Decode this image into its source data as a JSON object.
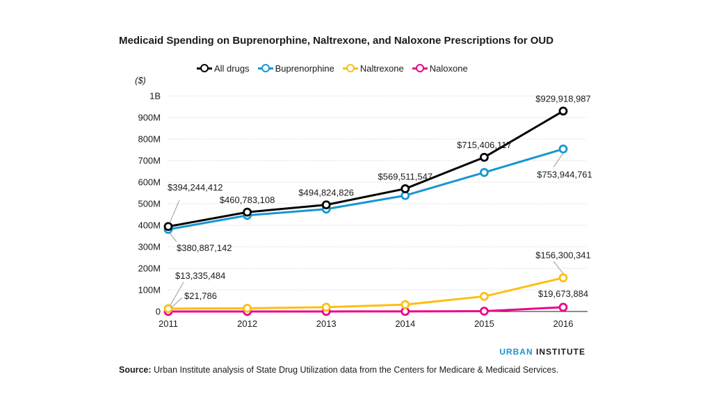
{
  "chart_data": {
    "type": "line",
    "title": "Medicaid Spending on Buprenorphine, Naltrexone, and Naloxone Prescriptions for OUD",
    "ylabel": "($)",
    "xlabel": "",
    "x": [
      "2011",
      "2012",
      "2013",
      "2014",
      "2015",
      "2016"
    ],
    "ylim": [
      0,
      1000000000
    ],
    "yticks": [
      {
        "value": 0,
        "label": "0"
      },
      {
        "value": 100000000,
        "label": "100M"
      },
      {
        "value": 200000000,
        "label": "200M"
      },
      {
        "value": 300000000,
        "label": "300M"
      },
      {
        "value": 400000000,
        "label": "400M"
      },
      {
        "value": 500000000,
        "label": "500M"
      },
      {
        "value": 600000000,
        "label": "600M"
      },
      {
        "value": 700000000,
        "label": "700M"
      },
      {
        "value": 800000000,
        "label": "800M"
      },
      {
        "value": 900000000,
        "label": "900M"
      },
      {
        "value": 1000000000,
        "label": "1B"
      }
    ],
    "grid": true,
    "legend_position": "top",
    "series": [
      {
        "key": "all",
        "name": "All drugs",
        "color": "#000000",
        "values": [
          394244412,
          460783108,
          494824826,
          569511547,
          715406117,
          929918987
        ]
      },
      {
        "key": "bup",
        "name": "Buprenorphine",
        "color": "#1696d2",
        "values": [
          380887142,
          446000000,
          475000000,
          538000000,
          645000000,
          753944761
        ]
      },
      {
        "key": "nal",
        "name": "Naltrexone",
        "color": "#fdbf11",
        "values": [
          13335484,
          15000000,
          20000000,
          32000000,
          70000000,
          156300341
        ]
      },
      {
        "key": "nalox",
        "name": "Naloxone",
        "color": "#ec008b",
        "values": [
          21786,
          100000,
          200000,
          500000,
          1500000,
          19673884
        ]
      }
    ],
    "annotations": [
      {
        "series": "all",
        "index": 0,
        "text": "$394,244,412",
        "placement": "above-leader"
      },
      {
        "series": "all",
        "index": 1,
        "text": "$460,783,108",
        "placement": "above"
      },
      {
        "series": "all",
        "index": 2,
        "text": "$494,824,826",
        "placement": "above"
      },
      {
        "series": "all",
        "index": 3,
        "text": "$569,511,547",
        "placement": "above"
      },
      {
        "series": "all",
        "index": 4,
        "text": "$715,406,117",
        "placement": "above"
      },
      {
        "series": "all",
        "index": 5,
        "text": "$929,918,987",
        "placement": "above"
      },
      {
        "series": "bup",
        "index": 0,
        "text": "$380,887,142",
        "placement": "below-leader"
      },
      {
        "series": "bup",
        "index": 5,
        "text": "$753,944,761",
        "placement": "below-leader"
      },
      {
        "series": "nal",
        "index": 0,
        "text": "$13,335,484",
        "placement": "above-leader-far"
      },
      {
        "series": "nalox",
        "index": 0,
        "text": "$21,786",
        "placement": "above-leader-near"
      },
      {
        "series": "nal",
        "index": 5,
        "text": "$156,300,341",
        "placement": "above-leader"
      },
      {
        "series": "nalox",
        "index": 5,
        "text": "$19,673,884",
        "placement": "above"
      }
    ]
  },
  "unit_label": "($)",
  "brand": {
    "part1": "URBAN",
    "part2": "INSTITUTE"
  },
  "source": {
    "label": "Source:",
    "text": "Urban Institute analysis of State Drug Utilization data from the Centers for Medicare & Medicaid Services."
  }
}
